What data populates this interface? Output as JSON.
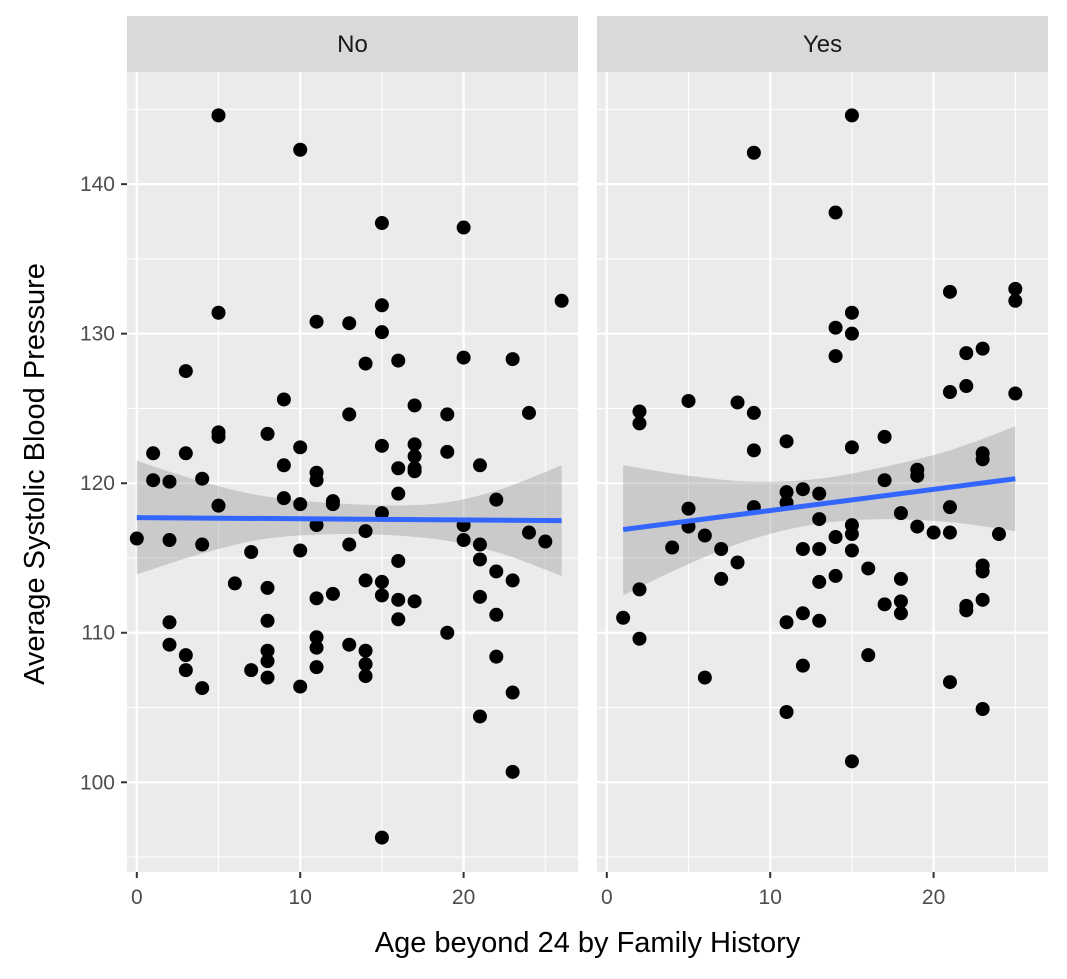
{
  "chart_data": {
    "type": "scatter",
    "title": "",
    "xlabel": "Age beyond 24 by Family History",
    "ylabel": "Average Systolic Blood Pressure",
    "xlim": [
      -0.6,
      27.0
    ],
    "ylim": [
      94.0,
      147.5
    ],
    "xticks": [
      0,
      10,
      20
    ],
    "yticks": [
      100,
      110,
      120,
      130,
      140
    ],
    "xtick_labels": [
      "0",
      "10",
      "20"
    ],
    "ytick_labels": [
      "100",
      "110",
      "120",
      "130",
      "140"
    ],
    "grid": true,
    "legend": "none",
    "colors": {
      "panel_bg": "#ebebeb",
      "strip_bg": "#d9d9d9",
      "grid": "#ffffff",
      "point": "#000000",
      "fit_line": "#3366ff",
      "ribbon": "#999999"
    },
    "panels": [
      {
        "label": "No",
        "points": [
          [
            0,
            116.3
          ],
          [
            1,
            122.0
          ],
          [
            1,
            120.2
          ],
          [
            2,
            120.1
          ],
          [
            2,
            116.2
          ],
          [
            2,
            110.7
          ],
          [
            2,
            109.2
          ],
          [
            3,
            127.5
          ],
          [
            3,
            122.0
          ],
          [
            3,
            108.5
          ],
          [
            3,
            107.5
          ],
          [
            4,
            120.3
          ],
          [
            4,
            115.9
          ],
          [
            4,
            106.3
          ],
          [
            5,
            144.6
          ],
          [
            5,
            131.4
          ],
          [
            5,
            123.4
          ],
          [
            5,
            123.1
          ],
          [
            5,
            118.5
          ],
          [
            6,
            113.3
          ],
          [
            7,
            115.4
          ],
          [
            7,
            107.5
          ],
          [
            8,
            123.3
          ],
          [
            8,
            113.0
          ],
          [
            8,
            110.8
          ],
          [
            8,
            108.8
          ],
          [
            8,
            108.1
          ],
          [
            8,
            107.0
          ],
          [
            9,
            125.6
          ],
          [
            9,
            121.2
          ],
          [
            9,
            119.0
          ],
          [
            10,
            142.3
          ],
          [
            10,
            122.4
          ],
          [
            10,
            118.6
          ],
          [
            10,
            115.5
          ],
          [
            10,
            106.4
          ],
          [
            11,
            130.8
          ],
          [
            11,
            120.7
          ],
          [
            11,
            120.2
          ],
          [
            11,
            117.2
          ],
          [
            11,
            112.3
          ],
          [
            11,
            109.7
          ],
          [
            11,
            109.0
          ],
          [
            11,
            107.7
          ],
          [
            12,
            118.8
          ],
          [
            12,
            118.6
          ],
          [
            12,
            112.6
          ],
          [
            13,
            130.7
          ],
          [
            13,
            124.6
          ],
          [
            13,
            115.9
          ],
          [
            13,
            109.2
          ],
          [
            14,
            128.0
          ],
          [
            14,
            116.8
          ],
          [
            14,
            113.5
          ],
          [
            14,
            108.8
          ],
          [
            14,
            107.9
          ],
          [
            14,
            107.1
          ],
          [
            15,
            137.4
          ],
          [
            15,
            131.9
          ],
          [
            15,
            130.1
          ],
          [
            15,
            122.5
          ],
          [
            15,
            118.0
          ],
          [
            15,
            113.4
          ],
          [
            15,
            112.5
          ],
          [
            15,
            96.3
          ],
          [
            16,
            128.2
          ],
          [
            16,
            121.0
          ],
          [
            16,
            119.3
          ],
          [
            16,
            114.8
          ],
          [
            16,
            112.2
          ],
          [
            16,
            110.9
          ],
          [
            17,
            125.2
          ],
          [
            17,
            122.6
          ],
          [
            17,
            121.8
          ],
          [
            17,
            121.0
          ],
          [
            17,
            120.8
          ],
          [
            17,
            112.1
          ],
          [
            19,
            124.6
          ],
          [
            19,
            122.1
          ],
          [
            19,
            110.0
          ],
          [
            20,
            137.1
          ],
          [
            20,
            128.4
          ],
          [
            20,
            117.2
          ],
          [
            20,
            116.2
          ],
          [
            21,
            121.2
          ],
          [
            21,
            115.9
          ],
          [
            21,
            114.9
          ],
          [
            21,
            112.4
          ],
          [
            21,
            104.4
          ],
          [
            22,
            118.9
          ],
          [
            22,
            114.1
          ],
          [
            22,
            111.2
          ],
          [
            22,
            108.4
          ],
          [
            23,
            128.3
          ],
          [
            23,
            113.5
          ],
          [
            23,
            106.0
          ],
          [
            23,
            100.7
          ],
          [
            24,
            124.7
          ],
          [
            24,
            116.7
          ],
          [
            25,
            116.1
          ],
          [
            26,
            132.2
          ]
        ],
        "fit": {
          "x": [
            0,
            26
          ],
          "y": [
            117.7,
            117.5
          ]
        },
        "ribbon": {
          "x": [
            0,
            4,
            8,
            13,
            18,
            22,
            26
          ],
          "lower": [
            113.9,
            115.3,
            116.3,
            116.6,
            116.3,
            115.4,
            113.8
          ],
          "upper": [
            121.5,
            120.1,
            119.1,
            118.6,
            118.6,
            119.5,
            121.2
          ]
        }
      },
      {
        "label": "Yes",
        "points": [
          [
            1,
            111.0
          ],
          [
            2,
            124.8
          ],
          [
            2,
            124.0
          ],
          [
            2,
            112.9
          ],
          [
            2,
            109.6
          ],
          [
            4,
            115.7
          ],
          [
            5,
            125.5
          ],
          [
            5,
            118.3
          ],
          [
            5,
            117.1
          ],
          [
            6,
            116.5
          ],
          [
            6,
            107.0
          ],
          [
            7,
            115.6
          ],
          [
            7,
            113.6
          ],
          [
            8,
            125.4
          ],
          [
            8,
            114.7
          ],
          [
            9,
            142.1
          ],
          [
            9,
            124.7
          ],
          [
            9,
            122.2
          ],
          [
            9,
            118.4
          ],
          [
            11,
            122.8
          ],
          [
            11,
            119.4
          ],
          [
            11,
            118.7
          ],
          [
            11,
            110.7
          ],
          [
            11,
            104.7
          ],
          [
            12,
            119.6
          ],
          [
            12,
            115.6
          ],
          [
            12,
            111.3
          ],
          [
            12,
            107.8
          ],
          [
            13,
            119.3
          ],
          [
            13,
            117.6
          ],
          [
            13,
            115.6
          ],
          [
            13,
            113.4
          ],
          [
            13,
            110.8
          ],
          [
            14,
            138.1
          ],
          [
            14,
            130.4
          ],
          [
            14,
            128.5
          ],
          [
            14,
            116.4
          ],
          [
            14,
            113.8
          ],
          [
            15,
            144.6
          ],
          [
            15,
            131.4
          ],
          [
            15,
            130.0
          ],
          [
            15,
            122.4
          ],
          [
            15,
            117.2
          ],
          [
            15,
            116.6
          ],
          [
            15,
            115.5
          ],
          [
            15,
            101.4
          ],
          [
            16,
            114.3
          ],
          [
            16,
            108.5
          ],
          [
            17,
            123.1
          ],
          [
            17,
            120.2
          ],
          [
            17,
            111.9
          ],
          [
            18,
            118.0
          ],
          [
            18,
            113.6
          ],
          [
            18,
            112.1
          ],
          [
            18,
            111.3
          ],
          [
            19,
            120.9
          ],
          [
            19,
            120.5
          ],
          [
            19,
            117.1
          ],
          [
            20,
            116.7
          ],
          [
            21,
            132.8
          ],
          [
            21,
            126.1
          ],
          [
            21,
            118.4
          ],
          [
            21,
            116.7
          ],
          [
            21,
            106.7
          ],
          [
            22,
            128.7
          ],
          [
            22,
            126.5
          ],
          [
            22,
            111.8
          ],
          [
            22,
            111.5
          ],
          [
            23,
            129.0
          ],
          [
            23,
            122.0
          ],
          [
            23,
            121.6
          ],
          [
            23,
            114.5
          ],
          [
            23,
            114.1
          ],
          [
            23,
            112.2
          ],
          [
            23,
            104.9
          ],
          [
            24,
            116.6
          ],
          [
            25,
            133.0
          ],
          [
            25,
            132.2
          ],
          [
            25,
            126.0
          ]
        ],
        "fit": {
          "x": [
            1,
            25
          ],
          "y": [
            116.9,
            120.3
          ]
        },
        "ribbon": {
          "x": [
            1,
            5,
            9,
            13,
            17,
            21,
            25
          ],
          "lower": [
            112.5,
            114.6,
            116.3,
            117.3,
            117.6,
            117.4,
            116.8
          ],
          "upper": [
            121.2,
            120.5,
            120.1,
            120.3,
            121.1,
            122.2,
            123.8
          ]
        }
      }
    ]
  }
}
